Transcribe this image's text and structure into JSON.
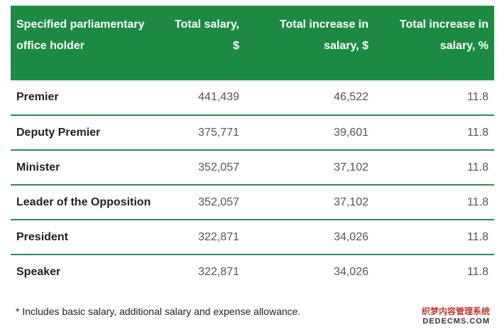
{
  "table": {
    "headers": {
      "col1": "Specified parliamentary office holder",
      "col2": "Total salary, $",
      "col3": "Total increase in salary, $",
      "col4": "Total increase in salary, %"
    },
    "rows": [
      {
        "office": "Premier",
        "salary": "441,439",
        "increase": "46,522",
        "pct": "11.8"
      },
      {
        "office": "Deputy Premier",
        "salary": "375,771",
        "increase": "39,601",
        "pct": "11.8"
      },
      {
        "office": "Minister",
        "salary": "352,057",
        "increase": "37,102",
        "pct": "11.8"
      },
      {
        "office": "Leader of the Opposition",
        "salary": "352,057",
        "increase": "37,102",
        "pct": "11.8"
      },
      {
        "office": "President",
        "salary": "322,871",
        "increase": "34,026",
        "pct": "11.8"
      },
      {
        "office": "Speaker",
        "salary": "322,871",
        "increase": "34,026",
        "pct": "11.8"
      }
    ]
  },
  "footnote": "* Includes basic salary, additional salary and expense allowance.",
  "watermark": {
    "line1": "织梦内容管理系统",
    "line2": "DEDECMS.COM"
  },
  "colors": {
    "header_bg": "#1d8a44",
    "row_border": "#2e8b57"
  }
}
